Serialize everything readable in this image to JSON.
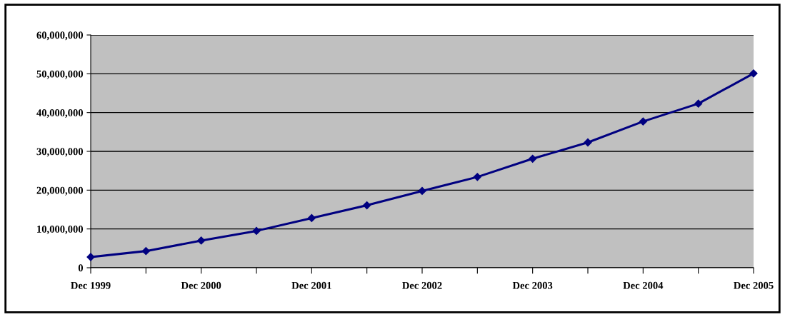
{
  "chart_data": {
    "type": "line",
    "categories": [
      "Dec 1999",
      null,
      "Dec 2000",
      null,
      "Dec 2001",
      null,
      "Dec 2002",
      null,
      "Dec 2003",
      null,
      "Dec 2004",
      null,
      "Dec 2005"
    ],
    "series": [
      {
        "color": "#000080",
        "values": [
          2760000,
          4300000,
          7000000,
          9500000,
          12800000,
          16100000,
          19800000,
          23400000,
          28100000,
          32300000,
          37700000,
          42300000,
          50100000
        ]
      }
    ],
    "ylim": [
      0,
      60000000
    ],
    "yticks": [
      0,
      {
        "value": 10000000,
        "label": "10,000,000"
      },
      {
        "value": 20000000,
        "label": "20,000,000"
      },
      {
        "value": 30000000,
        "label": "30,000,000"
      },
      {
        "value": 40000000,
        "label": "40,000,000"
      },
      {
        "value": 50000000,
        "label": "50,000,000"
      },
      {
        "value": 60000000,
        "label": "60,000,000"
      }
    ],
    "grid": "y",
    "marker": "diamond",
    "line_style": "solid"
  }
}
